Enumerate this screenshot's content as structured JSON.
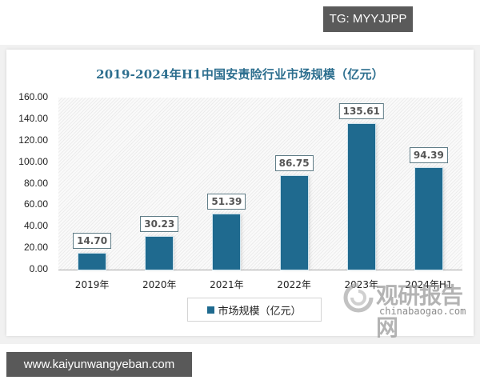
{
  "overlay": {
    "tg_badge": "TG: MYYJJPP",
    "url_badge": "www.kaiyunwangyeban.com"
  },
  "watermark": {
    "cn": "观研报告网",
    "en": "chinabaogao.com"
  },
  "legend": {
    "label": "市场规模（亿元）"
  },
  "colors": {
    "bar": "#1f6a8f",
    "title": "#2c6e8e"
  },
  "chart_data": {
    "type": "bar",
    "title": "2019-2024年H1中国安责险行业市场规模（亿元）",
    "xlabel": "",
    "ylabel": "",
    "categories": [
      "2019年",
      "2020年",
      "2021年",
      "2022年",
      "2023年",
      "2024年H1"
    ],
    "series": [
      {
        "name": "市场规模（亿元）",
        "values": [
          14.7,
          30.23,
          51.39,
          86.75,
          135.61,
          94.39
        ]
      }
    ],
    "value_labels": [
      "14.70",
      "30.23",
      "51.39",
      "86.75",
      "135.61",
      "94.39"
    ],
    "ylim": [
      0,
      160
    ],
    "yticks": [
      "0.00",
      "20.00",
      "40.00",
      "60.00",
      "80.00",
      "100.00",
      "120.00",
      "140.00",
      "160.00"
    ],
    "grid": false,
    "legend_position": "bottom"
  }
}
